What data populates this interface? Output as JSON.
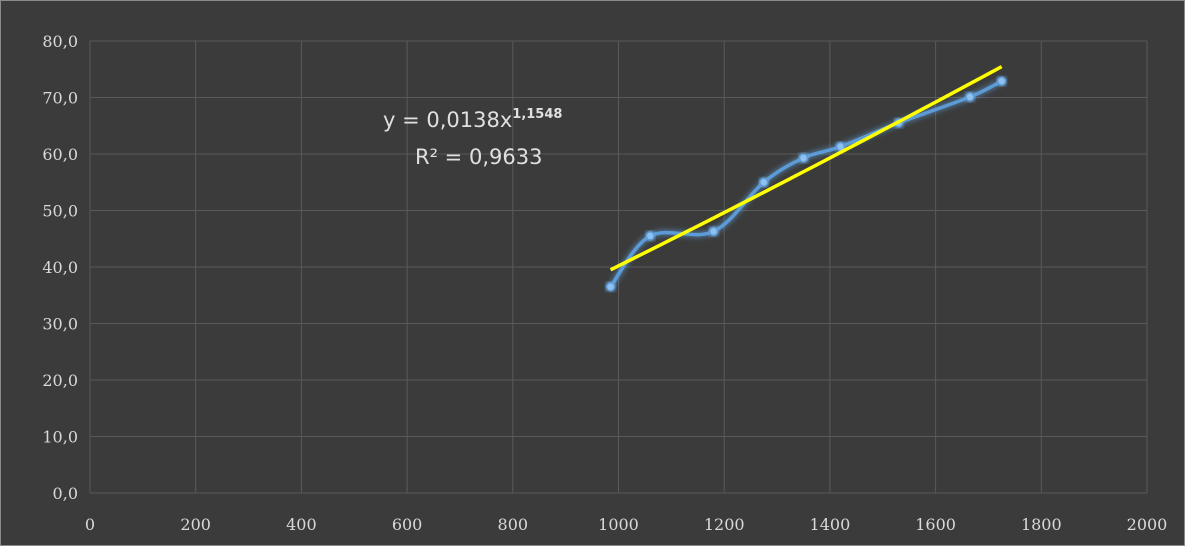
{
  "chart_data": {
    "type": "scatter",
    "title": "",
    "xlabel": "",
    "ylabel": "",
    "xlim": [
      0,
      2000
    ],
    "ylim": [
      0,
      80
    ],
    "x_ticks": [
      "0",
      "200",
      "400",
      "600",
      "800",
      "1000",
      "1200",
      "1400",
      "1600",
      "1800",
      "2000"
    ],
    "y_ticks": [
      "0,0",
      "10,0",
      "20,0",
      "30,0",
      "40,0",
      "50,0",
      "60,0",
      "70,0",
      "80,0"
    ],
    "grid": true,
    "series": [
      {
        "line": "smooth",
        "color": "#5b9bd5",
        "points": [
          {
            "x": 985,
            "y": 36.5
          },
          {
            "x": 1060,
            "y": 45.5
          },
          {
            "x": 1180,
            "y": 46.3
          },
          {
            "x": 1275,
            "y": 55.0
          },
          {
            "x": 1350,
            "y": 59.3
          },
          {
            "x": 1420,
            "y": 61.3
          },
          {
            "x": 1530,
            "y": 65.5
          },
          {
            "x": 1665,
            "y": 70.1
          },
          {
            "x": 1725,
            "y": 72.9
          }
        ]
      }
    ],
    "trendline": {
      "type": "power",
      "color": "#ffff00",
      "coefficient": 0.0138,
      "exponent": 1.1548,
      "x_range": [
        985,
        1725
      ],
      "equation_main": "y = 0,0138x",
      "equation_exponent": "1,1548",
      "r2_label": "R² = 0,9633"
    },
    "colors": {
      "background": "#3b3b3b",
      "grid": "#5a5a5a",
      "text": "#d9d9d9"
    }
  }
}
